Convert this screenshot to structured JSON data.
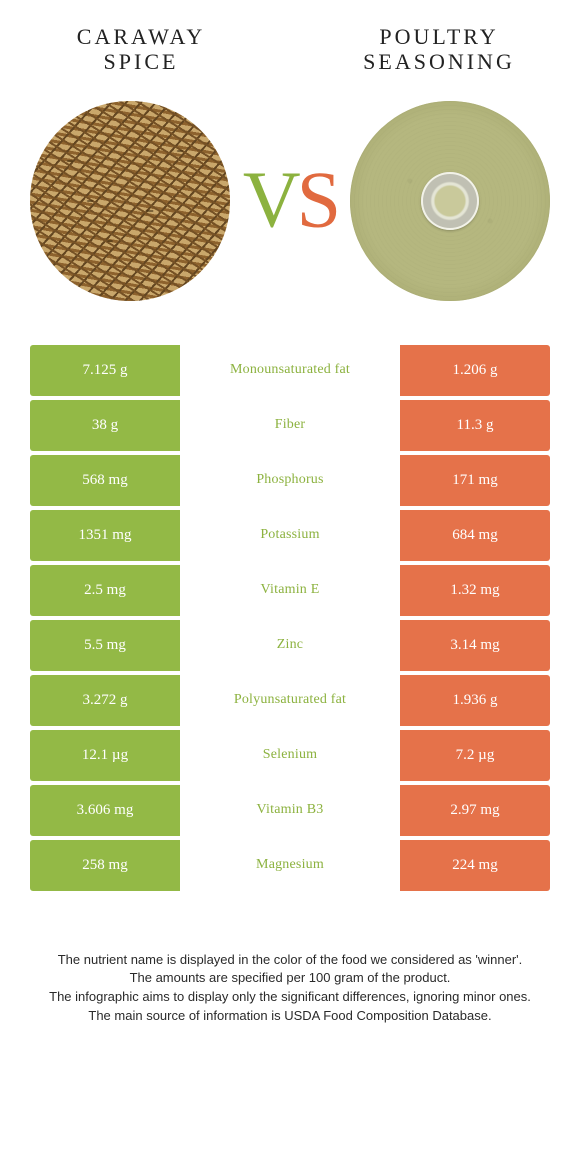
{
  "colors": {
    "green": "#8cb23f",
    "green_row": "#93b946",
    "orange": "#e16a3f",
    "orange_row": "#e5724a",
    "mid_bg": "#ffffff"
  },
  "left_item": {
    "title_line1": "CARAWAY",
    "title_line2": "SPICE"
  },
  "right_item": {
    "title_line1": "POULTRY",
    "title_line2": "SEASONING"
  },
  "vs": {
    "v": "V",
    "s": "S"
  },
  "rows": [
    {
      "left": "7.125 g",
      "label": "Monounsaturated fat",
      "right": "1.206 g",
      "winner": "green"
    },
    {
      "left": "38 g",
      "label": "Fiber",
      "right": "11.3 g",
      "winner": "green"
    },
    {
      "left": "568 mg",
      "label": "Phosphorus",
      "right": "171 mg",
      "winner": "green"
    },
    {
      "left": "1351 mg",
      "label": "Potassium",
      "right": "684 mg",
      "winner": "green"
    },
    {
      "left": "2.5 mg",
      "label": "Vitamin E",
      "right": "1.32 mg",
      "winner": "green"
    },
    {
      "left": "5.5 mg",
      "label": "Zinc",
      "right": "3.14 mg",
      "winner": "green"
    },
    {
      "left": "3.272 g",
      "label": "Polyunsaturated fat",
      "right": "1.936 g",
      "winner": "green"
    },
    {
      "left": "12.1 µg",
      "label": "Selenium",
      "right": "7.2 µg",
      "winner": "green"
    },
    {
      "left": "3.606 mg",
      "label": "Vitamin B3",
      "right": "2.97 mg",
      "winner": "green"
    },
    {
      "left": "258 mg",
      "label": "Magnesium",
      "right": "224 mg",
      "winner": "green"
    }
  ],
  "footer": {
    "l1": "The nutrient name is displayed in the color of the food we considered as 'winner'.",
    "l2": "The amounts are specified per 100 gram of the product.",
    "l3": "The infographic aims to display only the significant differences, ignoring minor ones.",
    "l4": "The main source of information is USDA Food Composition Database."
  }
}
